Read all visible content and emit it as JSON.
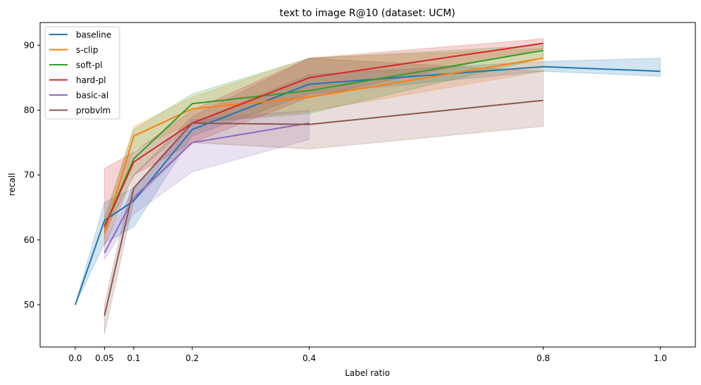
{
  "chart_data": {
    "type": "line",
    "title": "text to image R@10 (dataset: UCM)",
    "xlabel": "Label ratio",
    "ylabel": "recall",
    "xlim": [
      -0.06,
      1.06
    ],
    "ylim": [
      43.5,
      93.5
    ],
    "xticks": [
      0.0,
      0.05,
      0.1,
      0.2,
      0.4,
      0.8,
      1.0
    ],
    "xtick_labels": [
      "0.0",
      "0.05",
      "0.1",
      "0.2",
      "0.4",
      "0.8",
      "1.0"
    ],
    "yticks": [
      50,
      60,
      70,
      80,
      90
    ],
    "ytick_labels": [
      "50",
      "60",
      "70",
      "80",
      "90"
    ],
    "grid": false,
    "legend_position": "top-left",
    "series": [
      {
        "name": "baseline",
        "color": "#1f77b4",
        "x": [
          0.0,
          0.05,
          0.1,
          0.2,
          0.4,
          0.8,
          1.0
        ],
        "y": [
          50.0,
          63.0,
          66.0,
          77.0,
          84.0,
          86.7,
          86.0
        ],
        "lower": [
          50.0,
          59.5,
          62.0,
          76.0,
          82.5,
          86.0,
          85.2
        ],
        "upper": [
          50.0,
          65.8,
          68.0,
          78.0,
          85.5,
          87.5,
          88.0
        ]
      },
      {
        "name": "s-clip",
        "color": "#ff7f0e",
        "x": [
          0.05,
          0.1,
          0.2,
          0.4,
          0.8
        ],
        "y": [
          61.0,
          76.0,
          80.2,
          82.0,
          88.0
        ],
        "lower": [
          60.0,
          74.0,
          78.0,
          79.8,
          86.0
        ],
        "upper": [
          62.5,
          77.5,
          82.0,
          88.0,
          89.5
        ]
      },
      {
        "name": "soft-pl",
        "color": "#2ca02c",
        "x": [
          0.05,
          0.1,
          0.2,
          0.4,
          0.8
        ],
        "y": [
          62.0,
          72.5,
          81.0,
          83.0,
          89.2
        ],
        "lower": [
          61.0,
          70.0,
          78.0,
          79.5,
          88.0
        ],
        "upper": [
          63.5,
          77.0,
          82.5,
          88.0,
          90.0
        ]
      },
      {
        "name": "hard-pl",
        "color": "#d62728",
        "x": [
          0.05,
          0.1,
          0.2,
          0.4,
          0.8
        ],
        "y": [
          62.0,
          72.0,
          78.0,
          85.0,
          90.3
        ],
        "lower": [
          59.0,
          70.0,
          75.0,
          82.0,
          89.5
        ],
        "upper": [
          71.0,
          73.5,
          80.0,
          88.0,
          91.0
        ]
      },
      {
        "name": "basic-al",
        "color": "#9467bd",
        "x": [
          0.05,
          0.1,
          0.2,
          0.4
        ],
        "y": [
          58.0,
          66.5,
          75.0,
          78.0
        ],
        "lower": [
          57.0,
          64.0,
          70.5,
          75.5
        ],
        "upper": [
          59.5,
          68.0,
          78.5,
          80.0
        ]
      },
      {
        "name": "probvlm",
        "color": "#8c564b",
        "x": [
          0.05,
          0.1,
          0.2,
          0.4,
          0.8
        ],
        "y": [
          48.3,
          68.0,
          78.0,
          77.8,
          81.5
        ],
        "lower": [
          45.5,
          66.0,
          75.0,
          74.0,
          77.5
        ],
        "upper": [
          50.0,
          70.0,
          79.0,
          88.0,
          86.0
        ]
      }
    ]
  }
}
